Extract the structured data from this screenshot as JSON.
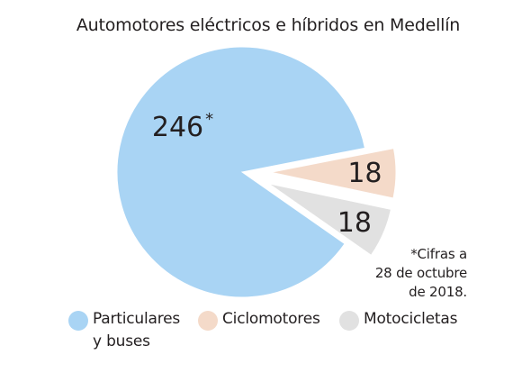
{
  "chart_data": {
    "type": "pie",
    "title": "Automotores eléctricos e híbridos en Medellín",
    "slices": [
      {
        "name": "Particulares y buses",
        "value": 246,
        "label": "246",
        "marker": "*",
        "color": "#a9d4f4",
        "exploded": false
      },
      {
        "name": "Ciclomotores",
        "value": 18,
        "label": "18",
        "marker": "",
        "color": "#f4dac9",
        "exploded": true
      },
      {
        "name": "Motocicletas",
        "value": 18,
        "label": "18",
        "marker": "",
        "color": "#e1e1e1",
        "exploded": true
      }
    ],
    "legend": {
      "position": "bottom",
      "items": [
        {
          "lines": [
            "Particulares",
            "y buses"
          ],
          "color": "#a9d4f4"
        },
        {
          "lines": [
            "Ciclomotores"
          ],
          "color": "#f4dac9"
        },
        {
          "lines": [
            "Motocicletas"
          ],
          "color": "#e1e1e1"
        }
      ]
    },
    "footnote": [
      "*Cifras a",
      "28 de octubre",
      "de 2018."
    ]
  }
}
